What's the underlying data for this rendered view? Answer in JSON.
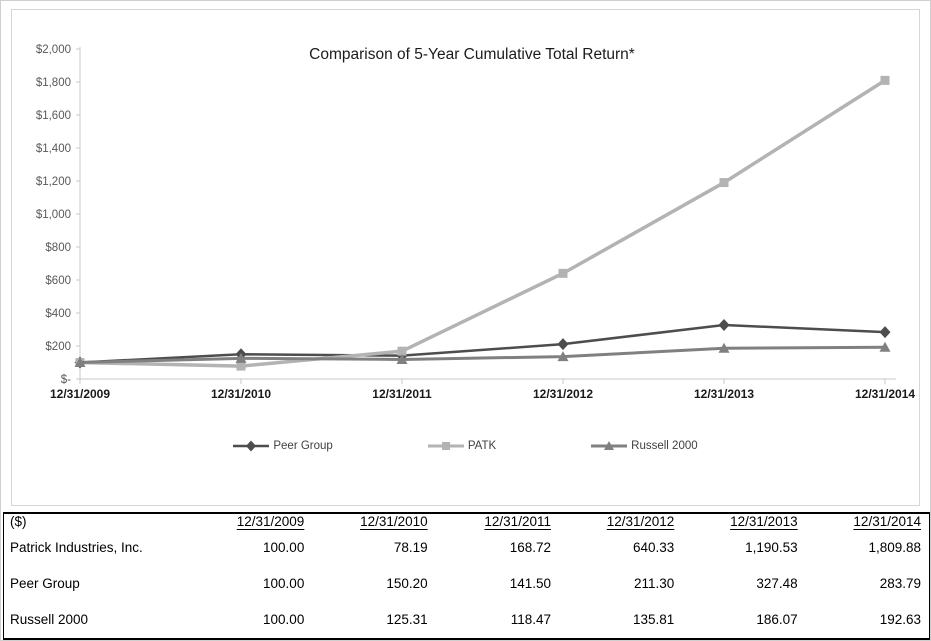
{
  "chart_data": {
    "type": "line",
    "title": "Comparison of 5-Year Cumulative Total Return*",
    "categories": [
      "12/31/2009",
      "12/31/2010",
      "12/31/2011",
      "12/31/2012",
      "12/31/2013",
      "12/31/2014"
    ],
    "series": [
      {
        "name": "Peer Group",
        "marker": "diamond",
        "color": "#4d4d4d",
        "line_width": 2.5,
        "values": [
          100.0,
          150.2,
          141.5,
          211.3,
          327.48,
          283.79
        ]
      },
      {
        "name": "PATK",
        "marker": "square",
        "color": "#b3b3b3",
        "line_width": 3.5,
        "values": [
          100.0,
          78.19,
          168.72,
          640.33,
          1190.53,
          1809.88
        ]
      },
      {
        "name": "Russell 2000",
        "marker": "triangle",
        "color": "#808080",
        "line_width": 3,
        "values": [
          100.0,
          125.31,
          118.47,
          135.81,
          186.07,
          192.63
        ]
      }
    ],
    "ylim": [
      0,
      2000
    ],
    "ytick_values": [
      0,
      200,
      400,
      600,
      800,
      1000,
      1200,
      1400,
      1600,
      1800,
      2000
    ],
    "ytick_labels": [
      "$-",
      "$200",
      "$400",
      "$600",
      "$800",
      "$1,000",
      "$1,200",
      "$1,400",
      "$1,600",
      "$1,800",
      "$2,000"
    ],
    "grid": false,
    "legend_position": "bottom",
    "axis_color": "#c8c8c8",
    "ytick_label_color": "#595959",
    "xtick_label_color": "#1a1a1a"
  },
  "table": {
    "unit_header": "($)",
    "columns": [
      "12/31/2009",
      "12/31/2010",
      "12/31/2011",
      "12/31/2012",
      "12/31/2013",
      "12/31/2014"
    ],
    "rows": [
      {
        "label": "Patrick Industries, Inc.",
        "values": [
          "100.00",
          "78.19",
          "168.72",
          "640.33",
          "1,190.53",
          "1,809.88"
        ]
      },
      {
        "label": "Peer Group",
        "values": [
          "100.00",
          "150.20",
          "141.50",
          "211.30",
          "327.48",
          "283.79"
        ]
      },
      {
        "label": "Russell 2000",
        "values": [
          "100.00",
          "125.31",
          "118.47",
          "135.81",
          "186.07",
          "192.63"
        ]
      }
    ]
  }
}
